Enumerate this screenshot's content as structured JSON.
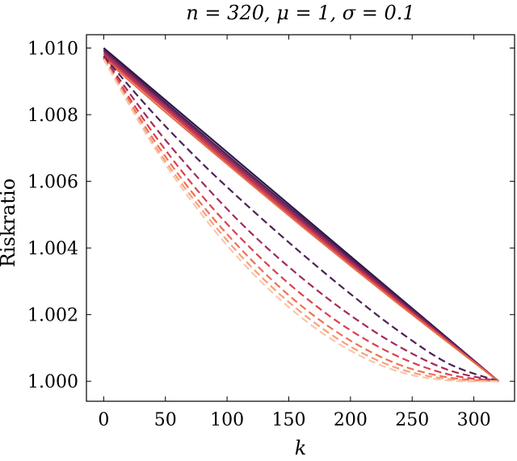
{
  "chart_data": {
    "type": "line",
    "title": "n = 320, μ = 1, σ = 0.1",
    "xlabel": "k",
    "ylabel": "Riskratio",
    "xlim": [
      -14,
      333
    ],
    "ylim": [
      0.9994,
      1.0104
    ],
    "xticks": [
      0,
      50,
      100,
      150,
      200,
      250,
      300
    ],
    "xtick_labels": [
      "0",
      "50",
      "100",
      "150",
      "200",
      "250",
      "300"
    ],
    "yticks": [
      1.0,
      1.002,
      1.004,
      1.006,
      1.008,
      1.01
    ],
    "ytick_labels": [
      "1.000",
      "1.002",
      "1.004",
      "1.006",
      "1.008",
      "1.010"
    ],
    "grid": false,
    "legend": "none",
    "x": [
      0,
      40,
      80,
      120,
      160,
      200,
      240,
      280,
      320
    ],
    "series": [
      {
        "style": "solid",
        "color": "#2a1846",
        "values": [
          1.01,
          1.00875,
          1.0075,
          1.00625,
          1.005,
          1.00375,
          1.0025,
          1.00125,
          1.0
        ]
      },
      {
        "style": "solid",
        "color": "#4d1e55",
        "values": [
          1.00995,
          1.00868,
          1.00742,
          1.00617,
          1.00493,
          1.00369,
          1.00246,
          1.00123,
          1.0
        ]
      },
      {
        "style": "solid",
        "color": "#7c2659",
        "values": [
          1.0099,
          1.00862,
          1.00735,
          1.0061,
          1.00486,
          1.00363,
          1.00241,
          1.00121,
          1.0
        ]
      },
      {
        "style": "solid",
        "color": "#ac2d55",
        "values": [
          1.00983,
          1.00855,
          1.00728,
          1.00603,
          1.0048,
          1.00358,
          1.00237,
          1.00118,
          1.0
        ]
      },
      {
        "style": "solid",
        "color": "#d23f4b",
        "values": [
          1.00977,
          1.00848,
          1.00721,
          1.00596,
          1.00473,
          1.00352,
          1.00233,
          1.00116,
          1.0
        ]
      },
      {
        "style": "solid",
        "color": "#ea6c48",
        "values": [
          1.0097,
          1.0084,
          1.00714,
          1.0059,
          1.00467,
          1.00347,
          1.00229,
          1.00114,
          1.0
        ]
      },
      {
        "style": "dashed",
        "color": "#4e2257",
        "values": [
          1.00975,
          1.00805,
          1.00653,
          1.00515,
          1.00385,
          1.00262,
          1.00148,
          1.00052,
          1.0
        ]
      },
      {
        "style": "dashed",
        "color": "#a42a59",
        "values": [
          1.00972,
          1.0077,
          1.00596,
          1.00443,
          1.00312,
          1.00198,
          1.00103,
          1.00033,
          1.0
        ]
      },
      {
        "style": "dashed",
        "color": "#d9414d",
        "values": [
          1.0097,
          1.00745,
          1.00555,
          1.00396,
          1.00262,
          1.00153,
          1.00072,
          1.0002,
          1.0
        ]
      },
      {
        "style": "dashed",
        "color": "#ef7052",
        "values": [
          1.00968,
          1.00728,
          1.00528,
          1.00363,
          1.00227,
          1.00122,
          1.00049,
          1.00011,
          1.0
        ]
      },
      {
        "style": "dashed",
        "color": "#f59f7e",
        "values": [
          1.00967,
          1.00716,
          1.00512,
          1.00342,
          1.00207,
          1.00104,
          1.00037,
          1.00006,
          1.0
        ]
      },
      {
        "style": "dashed",
        "color": "#f9c8ab",
        "values": [
          1.00966,
          1.00708,
          1.00498,
          1.00327,
          1.00192,
          1.00092,
          1.00028,
          1.00002,
          1.0
        ]
      }
    ]
  }
}
